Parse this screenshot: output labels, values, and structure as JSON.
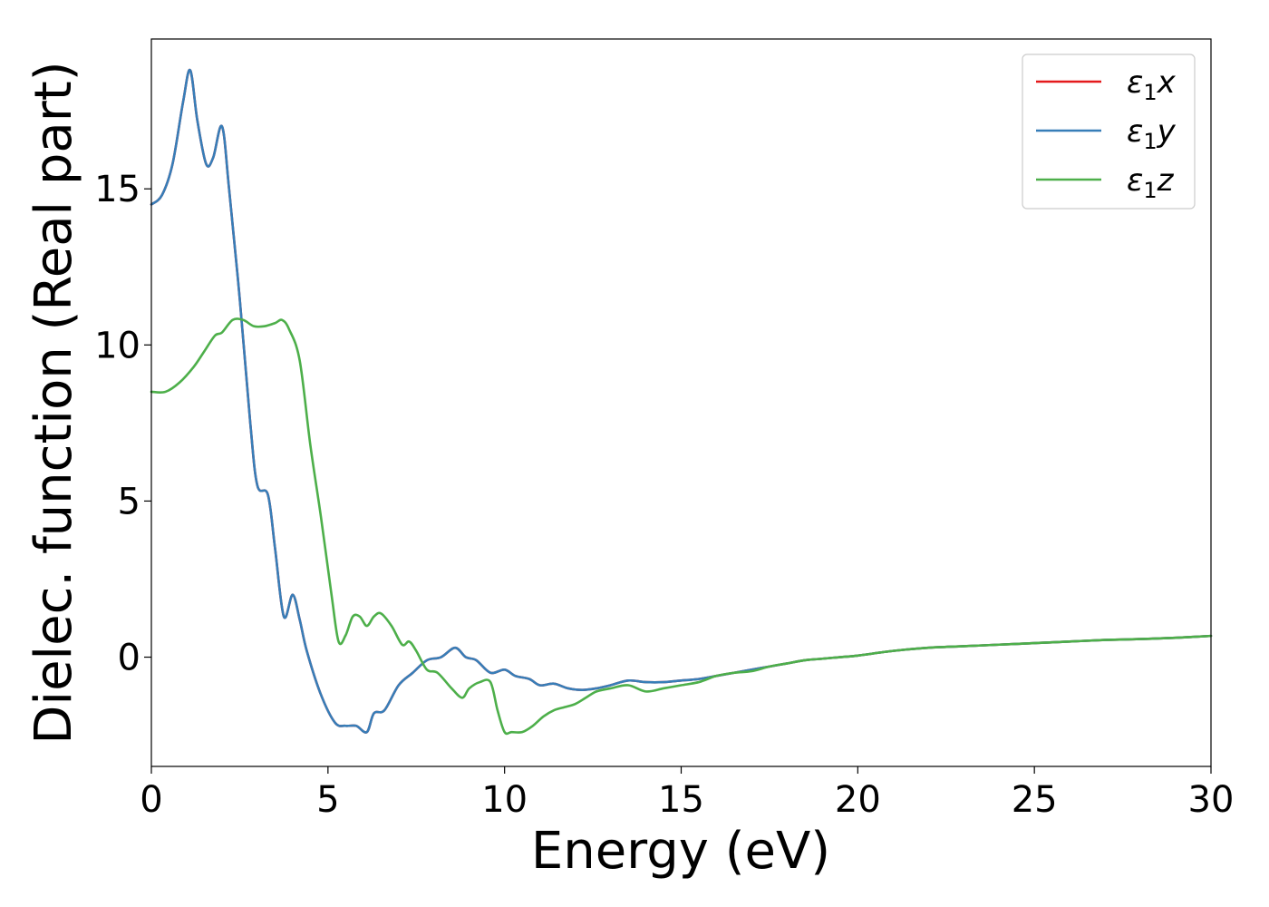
{
  "chart_data": {
    "type": "line",
    "xlabel": "Energy (eV)",
    "ylabel": "Dielec. function (Real part)",
    "xlim": [
      0,
      30
    ],
    "ylim": [
      -3.5,
      19.8
    ],
    "xticks": [
      0,
      5,
      10,
      15,
      20,
      25,
      30
    ],
    "yticks": [
      0,
      5,
      10,
      15
    ],
    "grid": false,
    "legend_position": "top-right",
    "series": [
      {
        "name": "ε₁x",
        "legend_base": "ε",
        "legend_sub": "1",
        "legend_var": "x",
        "color": "#e41a1c",
        "x": [
          0,
          0.3,
          0.6,
          0.9,
          1.1,
          1.3,
          1.55,
          1.75,
          2.0,
          2.2,
          2.5,
          2.8,
          3.0,
          3.3,
          3.5,
          3.75,
          4.0,
          4.2,
          4.4,
          4.8,
          5.2,
          5.5,
          5.8,
          6.1,
          6.3,
          6.6,
          7.0,
          7.4,
          7.8,
          8.2,
          8.6,
          8.9,
          9.2,
          9.6,
          10.0,
          10.3,
          10.7,
          11.0,
          11.4,
          11.8,
          12.2,
          12.6,
          13.0,
          13.5,
          14.0,
          14.5,
          15.0,
          15.5,
          16.0,
          16.5,
          17.0,
          17.5,
          18.0,
          18.5,
          19.0,
          19.5,
          20.0,
          21.0,
          22.0,
          23.0,
          24.0,
          25.0,
          26.0,
          27.0,
          28.0,
          29.0,
          30.0
        ],
        "y": [
          14.5,
          14.8,
          15.8,
          17.8,
          18.8,
          17.2,
          15.8,
          16.0,
          17.0,
          15.0,
          11.5,
          7.5,
          5.5,
          5.2,
          3.5,
          1.3,
          2.0,
          1.2,
          0.2,
          -1.2,
          -2.1,
          -2.2,
          -2.2,
          -2.4,
          -1.8,
          -1.7,
          -0.9,
          -0.5,
          -0.1,
          0.0,
          0.3,
          0.0,
          -0.1,
          -0.5,
          -0.4,
          -0.6,
          -0.7,
          -0.9,
          -0.85,
          -1.0,
          -1.05,
          -1.0,
          -0.9,
          -0.75,
          -0.8,
          -0.8,
          -0.75,
          -0.7,
          -0.6,
          -0.5,
          -0.4,
          -0.3,
          -0.2,
          -0.1,
          -0.05,
          0.0,
          0.05,
          0.2,
          0.3,
          0.35,
          0.4,
          0.45,
          0.5,
          0.55,
          0.58,
          0.62,
          0.68
        ]
      },
      {
        "name": "ε₁y",
        "legend_base": "ε",
        "legend_sub": "1",
        "legend_var": "y",
        "color": "#377eb8",
        "x": [
          0,
          0.3,
          0.6,
          0.9,
          1.1,
          1.3,
          1.55,
          1.75,
          2.0,
          2.2,
          2.5,
          2.8,
          3.0,
          3.3,
          3.5,
          3.75,
          4.0,
          4.2,
          4.4,
          4.8,
          5.2,
          5.5,
          5.8,
          6.1,
          6.3,
          6.6,
          7.0,
          7.4,
          7.8,
          8.2,
          8.6,
          8.9,
          9.2,
          9.6,
          10.0,
          10.3,
          10.7,
          11.0,
          11.4,
          11.8,
          12.2,
          12.6,
          13.0,
          13.5,
          14.0,
          14.5,
          15.0,
          15.5,
          16.0,
          16.5,
          17.0,
          17.5,
          18.0,
          18.5,
          19.0,
          19.5,
          20.0,
          21.0,
          22.0,
          23.0,
          24.0,
          25.0,
          26.0,
          27.0,
          28.0,
          29.0,
          30.0
        ],
        "y": [
          14.5,
          14.8,
          15.8,
          17.8,
          18.8,
          17.2,
          15.8,
          16.0,
          17.0,
          15.0,
          11.5,
          7.5,
          5.5,
          5.2,
          3.5,
          1.3,
          2.0,
          1.2,
          0.2,
          -1.2,
          -2.1,
          -2.2,
          -2.2,
          -2.4,
          -1.8,
          -1.7,
          -0.9,
          -0.5,
          -0.1,
          0.0,
          0.3,
          0.0,
          -0.1,
          -0.5,
          -0.4,
          -0.6,
          -0.7,
          -0.9,
          -0.85,
          -1.0,
          -1.05,
          -1.0,
          -0.9,
          -0.75,
          -0.8,
          -0.8,
          -0.75,
          -0.7,
          -0.6,
          -0.5,
          -0.4,
          -0.3,
          -0.2,
          -0.1,
          -0.05,
          0.0,
          0.05,
          0.2,
          0.3,
          0.35,
          0.4,
          0.45,
          0.5,
          0.55,
          0.58,
          0.62,
          0.68
        ]
      },
      {
        "name": "ε₁z",
        "legend_base": "ε",
        "legend_sub": "1",
        "legend_var": "z",
        "color": "#4daf4a",
        "x": [
          0,
          0.4,
          0.8,
          1.2,
          1.5,
          1.8,
          2.0,
          2.3,
          2.6,
          2.9,
          3.2,
          3.5,
          3.7,
          3.9,
          4.2,
          4.5,
          4.8,
          5.1,
          5.3,
          5.5,
          5.7,
          5.9,
          6.1,
          6.3,
          6.5,
          6.8,
          7.1,
          7.3,
          7.5,
          7.8,
          8.1,
          8.5,
          8.8,
          9.0,
          9.3,
          9.6,
          9.8,
          10.0,
          10.2,
          10.5,
          10.8,
          11.1,
          11.4,
          11.7,
          12.0,
          12.3,
          12.6,
          13.0,
          13.5,
          14.0,
          14.5,
          15.0,
          15.5,
          16.0,
          16.5,
          17.0,
          17.5,
          18.0,
          18.5,
          19.0,
          19.5,
          20.0,
          21.0,
          22.0,
          23.0,
          24.0,
          25.0,
          26.0,
          27.0,
          28.0,
          29.0,
          30.0
        ],
        "y": [
          8.5,
          8.5,
          8.8,
          9.3,
          9.8,
          10.3,
          10.4,
          10.8,
          10.8,
          10.6,
          10.6,
          10.7,
          10.8,
          10.5,
          9.5,
          6.8,
          4.5,
          2.0,
          0.5,
          0.7,
          1.3,
          1.3,
          1.0,
          1.3,
          1.4,
          1.0,
          0.4,
          0.5,
          0.2,
          -0.4,
          -0.5,
          -1.0,
          -1.3,
          -1.0,
          -0.8,
          -0.8,
          -1.7,
          -2.4,
          -2.4,
          -2.4,
          -2.2,
          -1.9,
          -1.7,
          -1.6,
          -1.5,
          -1.3,
          -1.1,
          -1.0,
          -0.9,
          -1.1,
          -1.0,
          -0.9,
          -0.8,
          -0.6,
          -0.5,
          -0.45,
          -0.3,
          -0.2,
          -0.1,
          -0.05,
          0.0,
          0.05,
          0.2,
          0.3,
          0.35,
          0.4,
          0.45,
          0.5,
          0.55,
          0.58,
          0.62,
          0.68
        ]
      }
    ]
  }
}
